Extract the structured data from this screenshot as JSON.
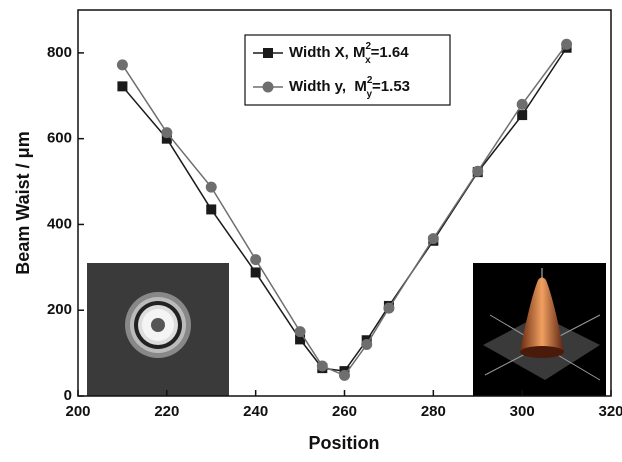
{
  "chart_data": {
    "type": "line",
    "x_label": "Position",
    "y_label": "Beam Waist / μm",
    "series": [
      {
        "name": [
          "Width X, M",
          "2",
          "x",
          "=1.64"
        ],
        "color": "#1a1a1a",
        "marker": "square",
        "x": [
          210,
          220,
          230,
          240,
          250,
          255,
          260,
          265,
          270,
          280,
          290,
          300,
          310
        ],
        "values": [
          722,
          600,
          435,
          288,
          132,
          65,
          58,
          130,
          210,
          362,
          522,
          655,
          812
        ]
      },
      {
        "name": [
          "Width y,  M",
          "2",
          "y",
          "=1.53"
        ],
        "color": "#6e6e6e",
        "marker": "circle",
        "x": [
          210,
          220,
          230,
          240,
          250,
          255,
          260,
          265,
          270,
          280,
          290,
          300,
          310
        ],
        "values": [
          772,
          614,
          487,
          318,
          150,
          70,
          48,
          120,
          205,
          367,
          524,
          680,
          820
        ]
      }
    ],
    "xlim": [
      200,
      320
    ],
    "xticks": [
      200,
      220,
      240,
      260,
      280,
      300,
      320
    ],
    "ylim": [
      0,
      900
    ],
    "yticks": [
      0,
      200,
      400,
      600,
      800
    ],
    "legend": "top-center"
  }
}
